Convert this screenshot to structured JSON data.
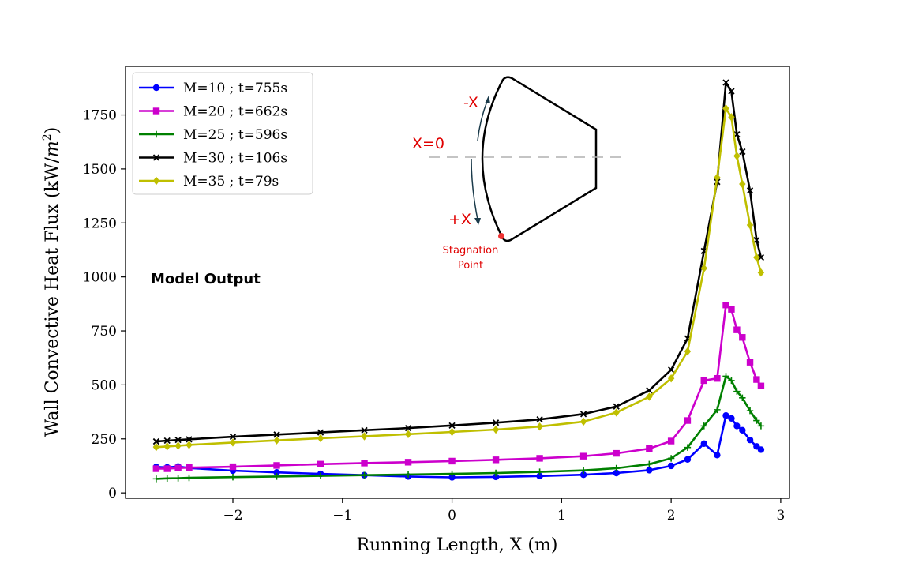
{
  "chart_data": {
    "type": "line",
    "title": "",
    "xlabel": "Running Length, X (m)",
    "ylabel": "Wall Convective Heat Flux (kW/m²)",
    "ylabel_main": "Wall Convective Heat Flux (kW/",
    "ylabel_unit_base": "m",
    "ylabel_unit_exp": "2",
    "ylabel_close": ")",
    "xlim": [
      -2.98,
      3.08
    ],
    "ylim": [
      -25,
      1975
    ],
    "xticks": [
      -2,
      -1,
      0,
      1,
      2,
      3
    ],
    "xtick_labels": [
      "−2",
      "−1",
      "0",
      "1",
      "2",
      "3"
    ],
    "yticks": [
      0,
      250,
      500,
      750,
      1000,
      1250,
      1500,
      1750
    ],
    "ytick_labels": [
      "0",
      "250",
      "500",
      "750",
      "1000",
      "1250",
      "1500",
      "1750"
    ],
    "legend_position": "top-left",
    "annotation": "Model Output",
    "inset": {
      "minus_x_label": "-X",
      "x0_label": "X=0",
      "plus_x_label": "+X",
      "stagnation_label_line1": "Stagnation",
      "stagnation_label_line2": "Point"
    },
    "series": [
      {
        "name": "M=10 ; t=755s",
        "color": "#0000ff",
        "marker": "circle",
        "x": [
          -2.7,
          -2.6,
          -2.5,
          -2.4,
          -2.0,
          -1.6,
          -1.2,
          -0.8,
          -0.4,
          0.0,
          0.4,
          0.8,
          1.2,
          1.5,
          1.8,
          2.0,
          2.15,
          2.3,
          2.42,
          2.5,
          2.55,
          2.6,
          2.65,
          2.72,
          2.78,
          2.82
        ],
        "values": [
          120,
          118,
          122,
          115,
          103,
          95,
          88,
          82,
          76,
          72,
          74,
          78,
          84,
          92,
          105,
          125,
          155,
          228,
          175,
          358,
          345,
          310,
          290,
          245,
          215,
          200
        ]
      },
      {
        "name": "M=20 ; t=662s",
        "color": "#cc00cc",
        "marker": "square",
        "x": [
          -2.7,
          -2.6,
          -2.5,
          -2.4,
          -2.0,
          -1.6,
          -1.2,
          -0.8,
          -0.4,
          0.0,
          0.4,
          0.8,
          1.2,
          1.5,
          1.8,
          2.0,
          2.15,
          2.3,
          2.42,
          2.5,
          2.55,
          2.6,
          2.65,
          2.72,
          2.78,
          2.82
        ],
        "values": [
          112,
          112,
          115,
          117,
          121,
          127,
          133,
          138,
          142,
          147,
          153,
          160,
          170,
          183,
          205,
          240,
          335,
          520,
          530,
          870,
          850,
          755,
          720,
          605,
          525,
          495
        ]
      },
      {
        "name": "M=25 ; t=596s",
        "color": "#008000",
        "marker": "plus",
        "x": [
          -2.7,
          -2.6,
          -2.5,
          -2.4,
          -2.0,
          -1.6,
          -1.2,
          -0.8,
          -0.4,
          0.0,
          0.4,
          0.8,
          1.2,
          1.5,
          1.8,
          2.0,
          2.15,
          2.3,
          2.42,
          2.5,
          2.55,
          2.6,
          2.65,
          2.72,
          2.78,
          2.82
        ],
        "values": [
          65,
          67,
          68,
          70,
          73,
          76,
          79,
          82,
          85,
          88,
          92,
          97,
          104,
          114,
          133,
          160,
          210,
          310,
          385,
          540,
          520,
          470,
          440,
          380,
          335,
          310
        ]
      },
      {
        "name": "M=30 ; t=106s",
        "color": "#000000",
        "marker": "x",
        "x": [
          -2.7,
          -2.6,
          -2.5,
          -2.4,
          -2.0,
          -1.6,
          -1.2,
          -0.8,
          -0.4,
          0.0,
          0.4,
          0.8,
          1.2,
          1.5,
          1.8,
          2.0,
          2.15,
          2.3,
          2.42,
          2.5,
          2.55,
          2.6,
          2.65,
          2.72,
          2.78,
          2.82
        ],
        "values": [
          238,
          242,
          245,
          248,
          260,
          270,
          280,
          290,
          300,
          312,
          325,
          340,
          365,
          400,
          475,
          570,
          715,
          1120,
          1440,
          1900,
          1860,
          1660,
          1580,
          1400,
          1170,
          1090
        ]
      },
      {
        "name": "M=35 ; t=79s",
        "color": "#bfbf00",
        "marker": "diamond",
        "x": [
          -2.7,
          -2.6,
          -2.5,
          -2.4,
          -2.0,
          -1.6,
          -1.2,
          -0.8,
          -0.4,
          0.0,
          0.4,
          0.8,
          1.2,
          1.5,
          1.8,
          2.0,
          2.15,
          2.3,
          2.42,
          2.5,
          2.55,
          2.6,
          2.65,
          2.72,
          2.78,
          2.82
        ],
        "values": [
          212,
          215,
          218,
          222,
          233,
          243,
          253,
          262,
          272,
          282,
          293,
          307,
          330,
          372,
          445,
          530,
          655,
          1040,
          1460,
          1780,
          1740,
          1560,
          1430,
          1240,
          1090,
          1020
        ]
      }
    ]
  }
}
